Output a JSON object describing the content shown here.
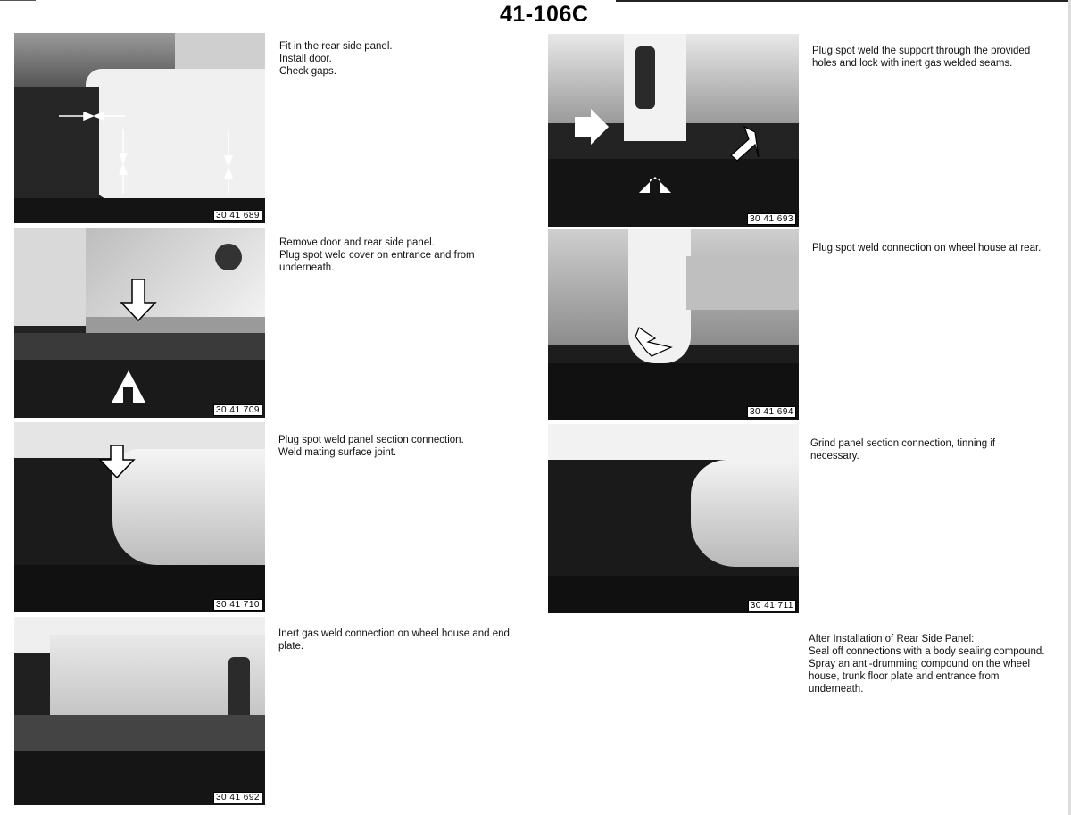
{
  "page": {
    "title": "41-106C"
  },
  "steps": [
    {
      "code": "30 41 689",
      "lines": [
        "Fit in the rear side panel.",
        "Install door.",
        "Check gaps."
      ]
    },
    {
      "code": "30 41 709",
      "lines": [
        "Remove door and rear side panel.",
        "Plug spot weld cover on entrance and from underneath."
      ]
    },
    {
      "code": "30 41 710",
      "lines": [
        "Plug spot weld panel section connection.",
        "Weld mating surface joint."
      ]
    },
    {
      "code": "30 41 692",
      "lines": [
        "Inert gas weld connection on wheel house and end plate."
      ]
    },
    {
      "code": "30 41 693",
      "lines": [
        "Plug spot weld the support through the provided holes and lock with inert gas welded seams."
      ]
    },
    {
      "code": "30 41 694",
      "lines": [
        "Plug spot weld connection on wheel house at rear."
      ]
    },
    {
      "code": "30 41 711",
      "lines": [
        "Grind panel section connection, tinning if necessary."
      ]
    }
  ],
  "final_note": {
    "heading": "After Installation of Rear Side Panel:",
    "lines": [
      "Seal off connections with a body sealing compound.",
      "Spray an anti-drumming compound on the wheel house, trunk floor plate and entrance from underneath."
    ]
  },
  "colors": {
    "ink": "#111111",
    "photo_dark": "#1c1c1c",
    "photo_light": "#e6e6e6"
  }
}
